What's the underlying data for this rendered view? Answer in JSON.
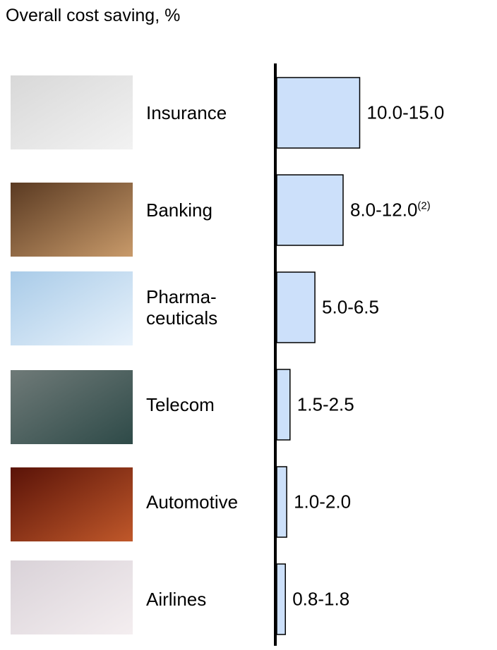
{
  "chart_data": {
    "type": "bar",
    "title": "Overall cost saving, %",
    "categories": [
      "Insurance",
      "Banking",
      "Pharma-\nceuticals",
      "Telecom",
      "Automotive",
      "Airlines"
    ],
    "low": [
      10.0,
      8.0,
      5.0,
      1.5,
      1.0,
      0.8
    ],
    "high": [
      15.0,
      12.0,
      6.5,
      2.5,
      2.0,
      1.8
    ],
    "value_labels": [
      "10.0-15.0",
      "8.0-12.0",
      "5.0-6.5",
      "1.5-2.5",
      "1.0-2.0",
      "0.8-1.8"
    ],
    "value_label_notes": [
      null,
      "(2)",
      null,
      null,
      null,
      null
    ],
    "color": "#cce0fa"
  }
}
